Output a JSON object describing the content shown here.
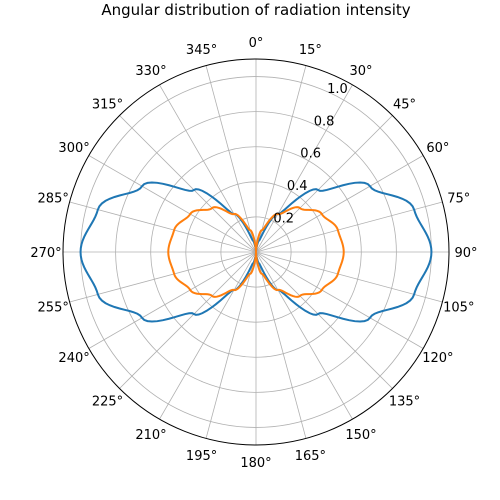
{
  "chart_data": {
    "type": "line",
    "projection": "polar",
    "title": "Angular distribution of radiation intensity",
    "theta_zero_location": "N",
    "theta_direction": "clockwise",
    "theta_unit": "degrees",
    "theta_ticks": [
      0,
      15,
      30,
      45,
      60,
      75,
      90,
      105,
      120,
      135,
      150,
      165,
      180,
      195,
      210,
      225,
      240,
      255,
      270,
      285,
      300,
      315,
      330,
      345
    ],
    "theta_tick_labels": [
      "0°",
      "15°",
      "30°",
      "45°",
      "60°",
      "75°",
      "90°",
      "105°",
      "120°",
      "135°",
      "150°",
      "165°",
      "180°",
      "195°",
      "210°",
      "225°",
      "240°",
      "255°",
      "270°",
      "285°",
      "300°",
      "315°",
      "330°",
      "345°"
    ],
    "r_ticks": [
      0.2,
      0.4,
      0.6,
      0.8,
      1.0
    ],
    "r_tick_labels": [
      "0.2",
      "0.4",
      "0.6",
      "0.8",
      "1.0"
    ],
    "rlim": [
      0,
      1.1
    ],
    "grid": true,
    "series": [
      {
        "color": "#1f77b4",
        "x": [
          0,
          15,
          30,
          45,
          60,
          75,
          90,
          105,
          120,
          135,
          150,
          165,
          180,
          195,
          210,
          225,
          240,
          255,
          270,
          285,
          300,
          315,
          330,
          345,
          360
        ],
        "values": [
          0.0,
          0.067,
          0.25,
          0.5,
          0.75,
          0.933,
          1.0,
          0.933,
          0.75,
          0.5,
          0.25,
          0.067,
          0.0,
          0.067,
          0.25,
          0.5,
          0.75,
          0.933,
          1.0,
          0.933,
          0.75,
          0.5,
          0.25,
          0.067,
          0.0
        ]
      },
      {
        "color": "#ff7f0e",
        "x": [
          0,
          15,
          30,
          45,
          60,
          75,
          90,
          105,
          120,
          135,
          150,
          165,
          180,
          195,
          210,
          225,
          240,
          255,
          270,
          285,
          300,
          315,
          330,
          345,
          360
        ],
        "values": [
          0.0,
          0.129,
          0.25,
          0.354,
          0.433,
          0.483,
          0.5,
          0.483,
          0.433,
          0.354,
          0.25,
          0.129,
          0.0,
          0.129,
          0.25,
          0.354,
          0.433,
          0.483,
          0.5,
          0.483,
          0.433,
          0.354,
          0.25,
          0.129,
          0.0
        ]
      }
    ]
  }
}
